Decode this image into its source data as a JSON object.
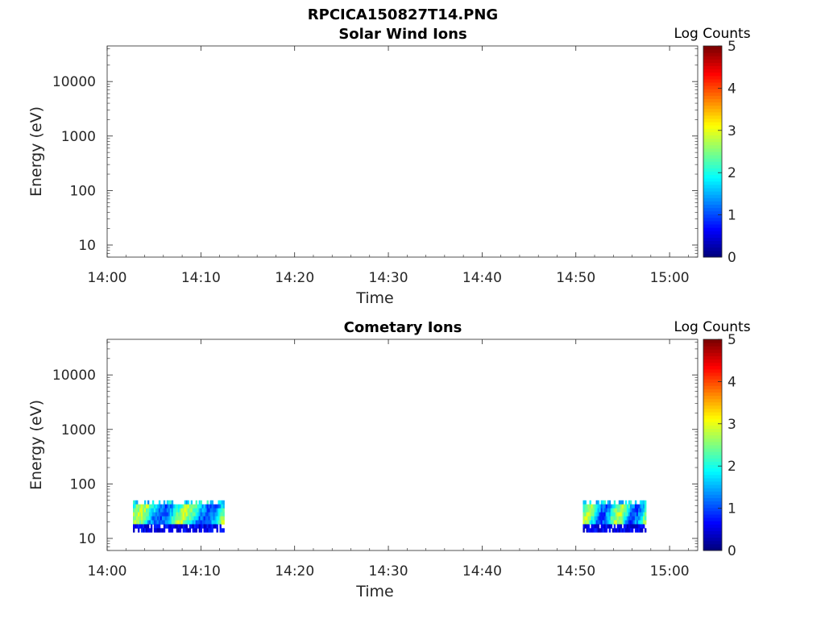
{
  "figure": {
    "title": "RPCICA150827T14.PNG"
  },
  "chart_data": [
    {
      "type": "heatmap",
      "title": "Solar Wind Ions",
      "xlabel": "Time",
      "ylabel": "Energy (eV)",
      "x_ticks": [
        "14:00",
        "14:10",
        "14:20",
        "14:30",
        "14:40",
        "14:50",
        "15:00"
      ],
      "xlim": [
        "14:00",
        "15:03"
      ],
      "y_scale": "log",
      "y_ticks": [
        "10",
        "100",
        "1000",
        "10000"
      ],
      "ylim": [
        6,
        45000
      ],
      "colorbar": {
        "label": "Log Counts",
        "range": [
          0,
          5
        ],
        "ticks": [
          "0",
          "1",
          "2",
          "3",
          "4",
          "5"
        ],
        "colormap": "jet"
      },
      "blocks": []
    },
    {
      "type": "heatmap",
      "title": "Cometary Ions",
      "xlabel": "Time",
      "ylabel": "Energy (eV)",
      "x_ticks": [
        "14:00",
        "14:10",
        "14:20",
        "14:30",
        "14:40",
        "14:50",
        "15:00"
      ],
      "xlim": [
        "14:00",
        "15:03"
      ],
      "y_scale": "log",
      "y_ticks": [
        "10",
        "100",
        "1000",
        "10000"
      ],
      "ylim": [
        6,
        45000
      ],
      "colorbar": {
        "label": "Log Counts",
        "range": [
          0,
          5
        ],
        "ticks": [
          "0",
          "1",
          "2",
          "3",
          "4",
          "5"
        ],
        "colormap": "jet"
      },
      "blocks": [
        {
          "t_start": "14:02:45",
          "t_end": "14:12:30",
          "e_min": 13,
          "e_max": 50
        },
        {
          "t_start": "14:50:45",
          "t_end": "14:57:30",
          "e_min": 13,
          "e_max": 50
        }
      ]
    }
  ]
}
